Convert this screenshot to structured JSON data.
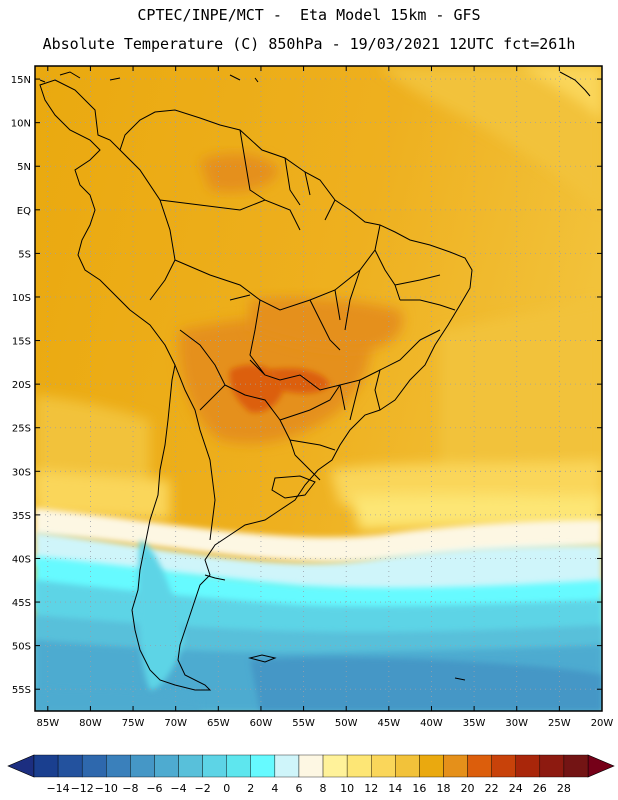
{
  "header": {
    "line1": "CPTEC/INPE/MCT -  Eta Model 15km - GFS",
    "line2": "Absolute Temperature (C) 850hPa - 19/03/2021 12UTC fct=261h"
  },
  "map": {
    "lat_labels": [
      "15N",
      "10N",
      "5N",
      "EQ",
      "5S",
      "10S",
      "15S",
      "20S",
      "25S",
      "30S",
      "35S",
      "40S",
      "45S",
      "50S",
      "55S"
    ],
    "lat_values": [
      15,
      10,
      5,
      0,
      -5,
      -10,
      -15,
      -20,
      -25,
      -30,
      -35,
      -40,
      -45,
      -50,
      -55
    ],
    "lon_labels": [
      "85W",
      "80W",
      "75W",
      "70W",
      "65W",
      "60W",
      "55W",
      "50W",
      "45W",
      "40W",
      "35W",
      "30W",
      "25W",
      "20W"
    ],
    "lon_values": [
      -85,
      -80,
      -75,
      -70,
      -65,
      -60,
      -55,
      -50,
      -45,
      -40,
      -35,
      -30,
      -25,
      -20
    ],
    "lat_range": [
      -57.5,
      16.5
    ],
    "lon_range": [
      -86.5,
      -20
    ],
    "grid": true
  },
  "colorbar": {
    "labels": [
      "-14",
      "-12",
      "-10",
      "-8",
      "-6",
      "-4",
      "-2",
      "0",
      "2",
      "4",
      "6",
      "8",
      "10",
      "12",
      "14",
      "16",
      "18",
      "20",
      "22",
      "24",
      "26",
      "28"
    ],
    "colors": [
      "#1a3f8f",
      "#23529e",
      "#2e68ad",
      "#3a80bb",
      "#4597c6",
      "#4eabd0",
      "#58c0da",
      "#5dd4e6",
      "#5ee6ee",
      "#66faff",
      "#cff5fa",
      "#fdf7e3",
      "#fff29a",
      "#fde675",
      "#fad65a",
      "#f2c23a",
      "#eaa90f",
      "#e5901a",
      "#dc5e0c",
      "#c8420a",
      "#a9260a",
      "#8d1a10",
      "#731414"
    ],
    "low_arrow_color": "#1c2e80",
    "high_arrow_color": "#750018"
  }
}
